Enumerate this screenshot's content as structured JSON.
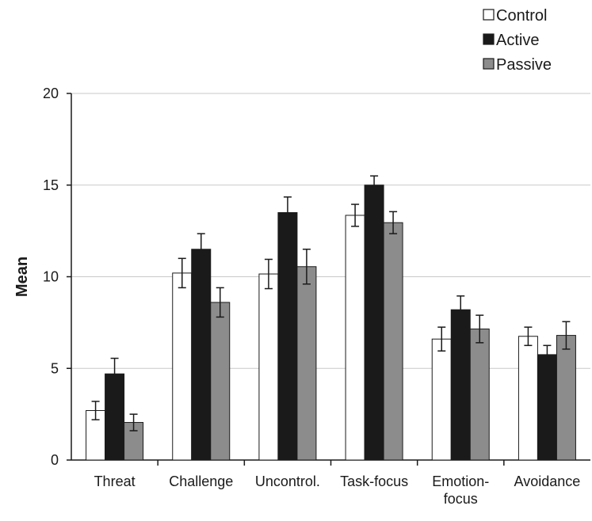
{
  "chart_data": {
    "type": "bar",
    "title": "",
    "xlabel": "",
    "ylabel": "Mean",
    "ylim": [
      0,
      20
    ],
    "yticks": [
      0,
      5,
      10,
      15,
      20
    ],
    "grid": true,
    "legend_position": "top-right",
    "categories": [
      [
        "Threat"
      ],
      [
        "Challenge"
      ],
      [
        "Uncontrol."
      ],
      [
        "Task-focus"
      ],
      [
        "Emotion-",
        "focus"
      ],
      [
        "Avoidance"
      ]
    ],
    "series": [
      {
        "name": "Control",
        "color": "#ffffff",
        "values": [
          2.7,
          10.2,
          10.15,
          13.35,
          6.6,
          6.75
        ],
        "error": [
          0.5,
          0.8,
          0.8,
          0.6,
          0.65,
          0.5
        ]
      },
      {
        "name": "Active",
        "color": "#1a1a1a",
        "values": [
          4.7,
          11.5,
          13.5,
          15.0,
          8.2,
          5.75
        ],
        "error": [
          0.85,
          0.85,
          0.85,
          0.5,
          0.75,
          0.5
        ]
      },
      {
        "name": "Passive",
        "color": "#8c8c8c",
        "values": [
          2.05,
          8.6,
          10.55,
          12.95,
          7.15,
          6.8
        ],
        "error": [
          0.45,
          0.8,
          0.95,
          0.6,
          0.75,
          0.75
        ]
      }
    ]
  }
}
